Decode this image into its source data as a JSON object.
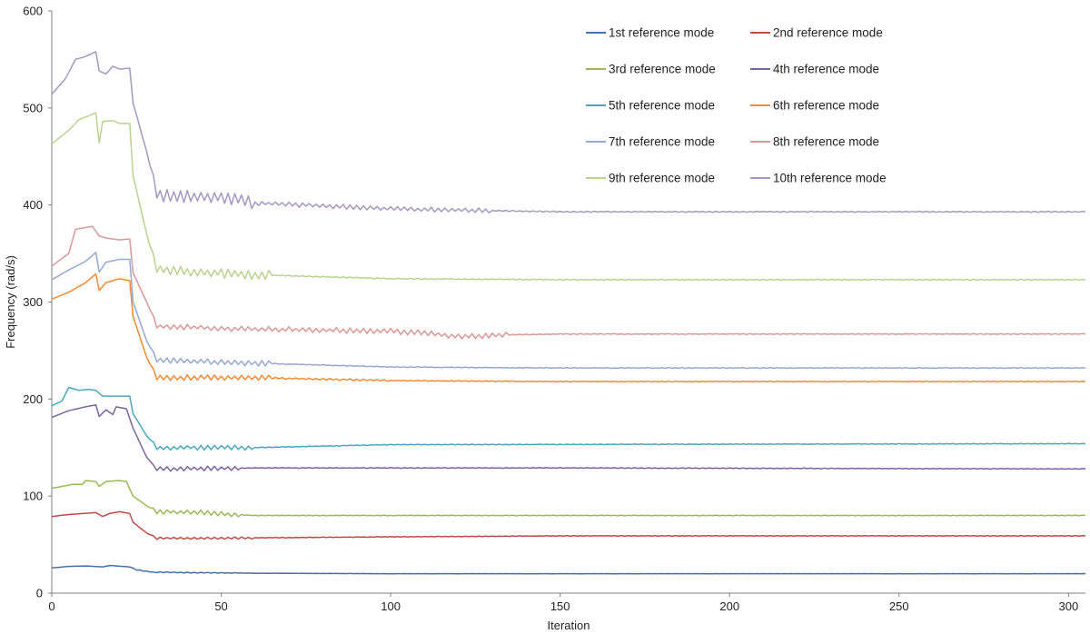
{
  "chart_data": {
    "type": "line",
    "title": "",
    "xlabel": "Iteration",
    "ylabel": "Frequency (rad/s)",
    "xlim": [
      0,
      305
    ],
    "ylim": [
      0,
      600
    ],
    "x_ticks": [
      0,
      50,
      100,
      150,
      200,
      250,
      300
    ],
    "y_ticks": [
      0,
      100,
      200,
      300,
      400,
      500,
      600
    ],
    "grid": false,
    "legend_position": "top-right",
    "series": [
      {
        "name": "1st reference mode",
        "color": "#4472a8",
        "anchors": [
          [
            0,
            26
          ],
          [
            5,
            27.5
          ],
          [
            10,
            28
          ],
          [
            15,
            27
          ],
          [
            17,
            28.5
          ],
          [
            23,
            27
          ],
          [
            25,
            24
          ],
          [
            30,
            21.5
          ],
          [
            60,
            20.5
          ],
          [
            100,
            20
          ],
          [
            150,
            20
          ],
          [
            200,
            20
          ],
          [
            305,
            20
          ]
        ],
        "noise": [
          [
            24,
            55,
            0.6
          ],
          [
            55,
            305,
            0.15
          ]
        ]
      },
      {
        "name": "2nd reference mode",
        "color": "#be4a47",
        "anchors": [
          [
            0,
            79
          ],
          [
            5,
            81
          ],
          [
            13,
            83
          ],
          [
            15,
            79
          ],
          [
            17,
            82
          ],
          [
            20,
            84
          ],
          [
            23,
            82
          ],
          [
            24,
            73
          ],
          [
            28,
            62
          ],
          [
            31,
            56.5
          ],
          [
            60,
            57
          ],
          [
            100,
            58
          ],
          [
            150,
            59
          ],
          [
            305,
            59
          ]
        ],
        "noise": [
          [
            30,
            60,
            1.2
          ],
          [
            60,
            305,
            0.3
          ]
        ]
      },
      {
        "name": "3rd reference mode",
        "color": "#98b954",
        "anchors": [
          [
            0,
            108
          ],
          [
            3,
            110
          ],
          [
            6,
            112
          ],
          [
            9,
            112
          ],
          [
            10,
            116
          ],
          [
            13,
            115
          ],
          [
            14,
            110
          ],
          [
            16,
            115
          ],
          [
            20,
            116
          ],
          [
            22,
            115
          ],
          [
            24,
            100
          ],
          [
            28,
            90
          ],
          [
            31,
            84
          ],
          [
            45,
            83
          ],
          [
            60,
            80
          ],
          [
            100,
            80
          ],
          [
            305,
            80
          ]
        ],
        "noise": [
          [
            30,
            56,
            2.5
          ],
          [
            56,
            305,
            0.4
          ]
        ]
      },
      {
        "name": "4th reference mode",
        "color": "#7f61a0",
        "anchors": [
          [
            0,
            181
          ],
          [
            5,
            188
          ],
          [
            10,
            192
          ],
          [
            13,
            194
          ],
          [
            14,
            182
          ],
          [
            16,
            189
          ],
          [
            18,
            184
          ],
          [
            19,
            192
          ],
          [
            22,
            190
          ],
          [
            24,
            170
          ],
          [
            28,
            140
          ],
          [
            31,
            128
          ],
          [
            60,
            129
          ],
          [
            150,
            129
          ],
          [
            305,
            128
          ]
        ],
        "noise": [
          [
            31,
            56,
            2.5
          ],
          [
            56,
            305,
            0.4
          ]
        ]
      },
      {
        "name": "5th reference mode",
        "color": "#4aa6bf",
        "anchors": [
          [
            0,
            193
          ],
          [
            3,
            198
          ],
          [
            5,
            212
          ],
          [
            8,
            209
          ],
          [
            11,
            210
          ],
          [
            13,
            209
          ],
          [
            15,
            203
          ],
          [
            17,
            203
          ],
          [
            23,
            203
          ],
          [
            24,
            185
          ],
          [
            28,
            162
          ],
          [
            31,
            150
          ],
          [
            50,
            150
          ],
          [
            60,
            150
          ],
          [
            100,
            153
          ],
          [
            305,
            154
          ]
        ],
        "noise": [
          [
            30,
            60,
            2.5
          ],
          [
            60,
            305,
            0.4
          ]
        ]
      },
      {
        "name": "6th reference mode",
        "color": "#f08a33",
        "anchors": [
          [
            0,
            303
          ],
          [
            5,
            310
          ],
          [
            10,
            320
          ],
          [
            13,
            329
          ],
          [
            14,
            312
          ],
          [
            16,
            320
          ],
          [
            20,
            324
          ],
          [
            23,
            322
          ],
          [
            24,
            285
          ],
          [
            28,
            243
          ],
          [
            31,
            222
          ],
          [
            60,
            222
          ],
          [
            100,
            219
          ],
          [
            150,
            218
          ],
          [
            305,
            218
          ]
        ],
        "noise": [
          [
            30,
            65,
            3
          ],
          [
            65,
            100,
            1
          ],
          [
            100,
            305,
            0.4
          ]
        ]
      },
      {
        "name": "7th reference mode",
        "color": "#93a9d2",
        "anchors": [
          [
            0,
            323
          ],
          [
            5,
            333
          ],
          [
            10,
            342
          ],
          [
            13,
            351
          ],
          [
            14,
            331
          ],
          [
            16,
            341
          ],
          [
            20,
            344
          ],
          [
            23,
            344
          ],
          [
            24,
            300
          ],
          [
            28,
            260
          ],
          [
            31,
            240
          ],
          [
            60,
            237
          ],
          [
            100,
            233
          ],
          [
            150,
            232
          ],
          [
            305,
            232
          ]
        ],
        "noise": [
          [
            30,
            65,
            3
          ],
          [
            65,
            305,
            0.4
          ]
        ]
      },
      {
        "name": "8th reference mode",
        "color": "#d99796",
        "anchors": [
          [
            0,
            337
          ],
          [
            5,
            350
          ],
          [
            7,
            375
          ],
          [
            12,
            378
          ],
          [
            14,
            368
          ],
          [
            16,
            366
          ],
          [
            20,
            364
          ],
          [
            23,
            365
          ],
          [
            24,
            330
          ],
          [
            28,
            300
          ],
          [
            31,
            275
          ],
          [
            60,
            272
          ],
          [
            100,
            270
          ],
          [
            110,
            268
          ],
          [
            120,
            264
          ],
          [
            130,
            266
          ],
          [
            150,
            267
          ],
          [
            305,
            267
          ]
        ],
        "noise": [
          [
            30,
            100,
            3
          ],
          [
            100,
            135,
            3
          ],
          [
            135,
            305,
            0.5
          ]
        ]
      },
      {
        "name": "9th reference mode",
        "color": "#b9d38d",
        "anchors": [
          [
            0,
            463
          ],
          [
            5,
            477
          ],
          [
            8,
            488
          ],
          [
            11,
            492
          ],
          [
            13,
            495
          ],
          [
            14,
            464
          ],
          [
            15,
            486
          ],
          [
            18,
            487
          ],
          [
            20,
            484
          ],
          [
            23,
            484
          ],
          [
            24,
            430
          ],
          [
            28,
            370
          ],
          [
            31,
            333
          ],
          [
            60,
            328
          ],
          [
            100,
            324
          ],
          [
            150,
            323
          ],
          [
            305,
            323
          ]
        ],
        "noise": [
          [
            30,
            65,
            5
          ],
          [
            65,
            305,
            0.6
          ]
        ]
      },
      {
        "name": "10th reference mode",
        "color": "#a597c2",
        "anchors": [
          [
            0,
            514
          ],
          [
            4,
            530
          ],
          [
            7,
            550
          ],
          [
            10,
            553
          ],
          [
            13,
            558
          ],
          [
            14,
            538
          ],
          [
            16,
            535
          ],
          [
            18,
            543
          ],
          [
            20,
            540
          ],
          [
            23,
            541
          ],
          [
            24,
            505
          ],
          [
            28,
            455
          ],
          [
            31,
            410
          ],
          [
            50,
            408
          ],
          [
            60,
            402
          ],
          [
            100,
            396
          ],
          [
            150,
            393
          ],
          [
            305,
            393
          ]
        ],
        "noise": [
          [
            30,
            60,
            7
          ],
          [
            60,
            130,
            2.5
          ],
          [
            130,
            305,
            0.6
          ]
        ]
      }
    ]
  }
}
